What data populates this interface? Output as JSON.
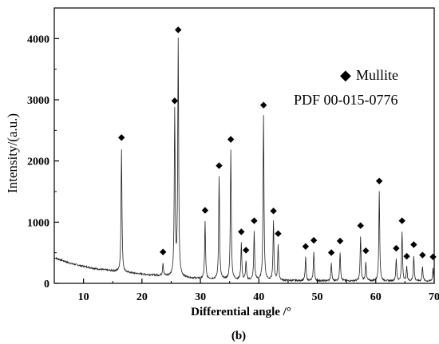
{
  "chart_data": {
    "type": "line",
    "title": "",
    "xlabel": "Differential angle /°",
    "ylabel": "Intensity/(a.u.)",
    "xlim": [
      5,
      70
    ],
    "ylim": [
      0,
      4500
    ],
    "xticks": [
      10,
      20,
      30,
      40,
      50,
      60,
      70
    ],
    "yticks": [
      0,
      1000,
      2000,
      3000,
      4000
    ],
    "grid": false,
    "legend": {
      "position": "top-right",
      "entries": [
        {
          "marker": "◆",
          "label": "Mullite"
        },
        {
          "marker": "",
          "label": "PDF 00-015-0776"
        }
      ]
    },
    "caption": "(b)",
    "series": [
      {
        "name": "Mullite",
        "baseline": [
          [
            5,
            420
          ],
          [
            8,
            320
          ],
          [
            12,
            240
          ],
          [
            16,
            190
          ],
          [
            20,
            150
          ],
          [
            25,
            110
          ],
          [
            30,
            75
          ],
          [
            35,
            60
          ],
          [
            40,
            50
          ],
          [
            45,
            45
          ],
          [
            50,
            40
          ],
          [
            55,
            40
          ],
          [
            60,
            38
          ],
          [
            65,
            35
          ],
          [
            70,
            35
          ]
        ],
        "peaks": [
          {
            "x": 16.5,
            "y": 2200
          },
          {
            "x": 23.6,
            "y": 330
          },
          {
            "x": 25.6,
            "y": 2800
          },
          {
            "x": 26.2,
            "y": 3960
          },
          {
            "x": 30.8,
            "y": 1010
          },
          {
            "x": 33.2,
            "y": 1740
          },
          {
            "x": 35.2,
            "y": 2170
          },
          {
            "x": 37.0,
            "y": 660
          },
          {
            "x": 37.8,
            "y": 360
          },
          {
            "x": 39.2,
            "y": 840
          },
          {
            "x": 40.8,
            "y": 2730
          },
          {
            "x": 42.5,
            "y": 1000
          },
          {
            "x": 43.3,
            "y": 630
          },
          {
            "x": 48.0,
            "y": 420
          },
          {
            "x": 49.4,
            "y": 520
          },
          {
            "x": 52.4,
            "y": 320
          },
          {
            "x": 53.9,
            "y": 510
          },
          {
            "x": 57.4,
            "y": 760
          },
          {
            "x": 58.3,
            "y": 350
          },
          {
            "x": 60.6,
            "y": 1490
          },
          {
            "x": 63.5,
            "y": 390
          },
          {
            "x": 64.5,
            "y": 840
          },
          {
            "x": 65.3,
            "y": 260
          },
          {
            "x": 66.5,
            "y": 450
          },
          {
            "x": 68.0,
            "y": 280
          },
          {
            "x": 69.8,
            "y": 250
          }
        ]
      }
    ]
  }
}
